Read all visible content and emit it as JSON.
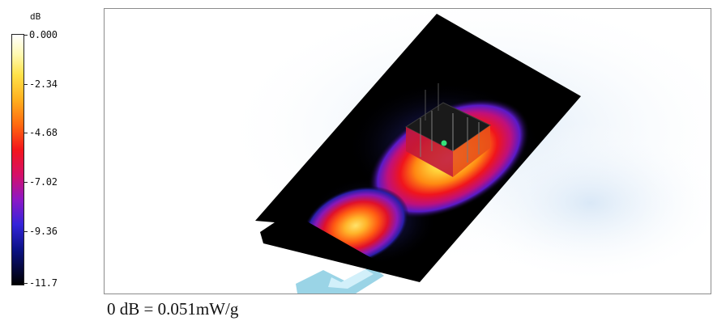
{
  "legend": {
    "unit": "dB",
    "ticks": [
      "0.000",
      "-2.34",
      "-4.68",
      "-7.02",
      "-9.36",
      "-11.7"
    ]
  },
  "footer": {
    "reference": "0 dB = 0.051mW/g"
  }
}
